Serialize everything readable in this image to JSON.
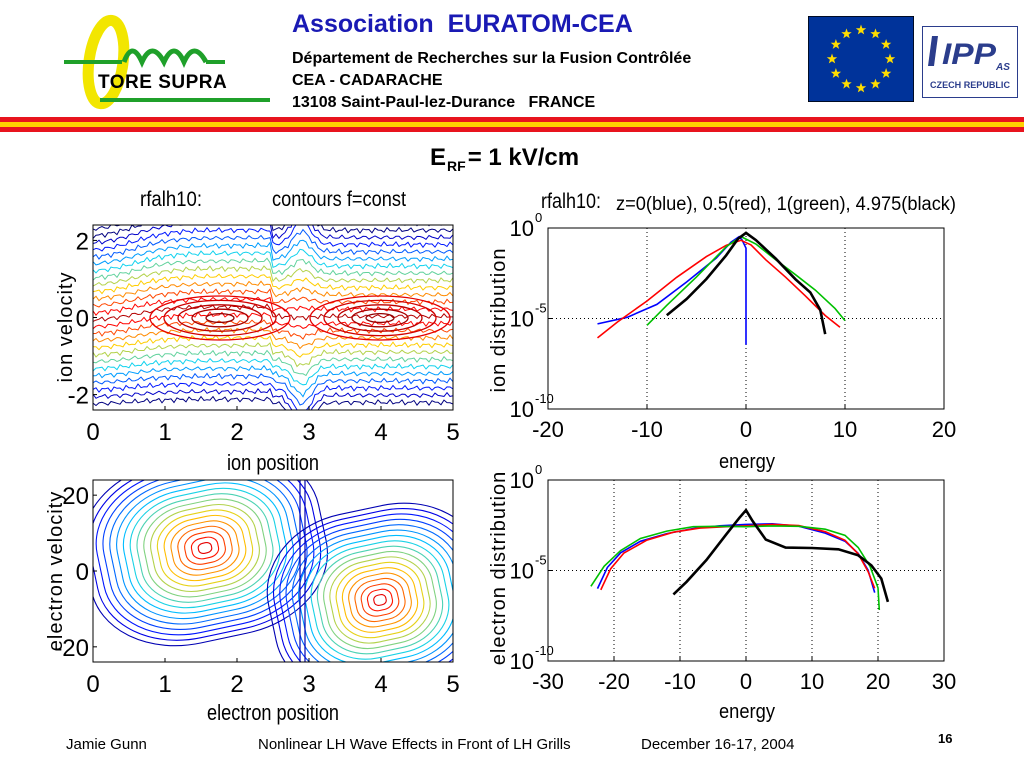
{
  "header": {
    "logo_text": "TORE SUPRA",
    "title": "Association  EURATOM-CEA",
    "line1": "Département de Recherches sur la Fusion Contrôlée",
    "line2": "CEA - CADARACHE",
    "line3": "13108 Saint-Paul-lez-Durance   FRANCE",
    "ipp_logo_text": "IPP",
    "ipp_logo_as": "AS",
    "ipp_logo_country": "CZECH REPUBLIC"
  },
  "slide": {
    "title_main": "E",
    "title_sub": "RF",
    "title_rest": "= 1 kV/cm"
  },
  "colors": {
    "header_blue": "#1a1ab4",
    "stripe_red": "#e8141e",
    "stripe_yellow": "#ffd200",
    "eu_blue": "#00339a",
    "eu_star": "#ffdd00",
    "logo_green": "#1fa02a",
    "logo_yellow": "#f2e600"
  },
  "chart_data": [
    {
      "type": "contour",
      "title": "rfalh10:",
      "subtitle": "contours f=const",
      "xlabel": "ion position",
      "ylabel": "ion velocity",
      "xlim": [
        0,
        5
      ],
      "ylim": [
        -2.4,
        2.4
      ],
      "xticks": [
        "0",
        "1",
        "2",
        "3",
        "4",
        "5"
      ],
      "yticks": [
        "2",
        "0",
        "-2"
      ],
      "ytick_values": [
        2,
        0,
        -2
      ],
      "colormap": "jet"
    },
    {
      "type": "contour",
      "xlabel": "electron position",
      "ylabel": "electron velocity",
      "xlim": [
        0,
        5
      ],
      "ylim": [
        -24,
        24
      ],
      "xticks": [
        "0",
        "1",
        "2",
        "3",
        "4",
        "5"
      ],
      "yticks": [
        "20",
        "0",
        "-20"
      ],
      "ytick_values": [
        20,
        0,
        -20
      ],
      "colormap": "jet"
    },
    {
      "type": "line",
      "title": "rfalh10:",
      "subtitle": "z=0(blue), 0.5(red), 1(green), 4.975(black)",
      "xlabel": "energy",
      "ylabel": "ion distribution",
      "xlim": [
        -20,
        20
      ],
      "log_ylim": [
        -10,
        0
      ],
      "xticks": [
        "-20",
        "-10",
        "0",
        "10",
        "20"
      ],
      "yticks": [
        {
          "base": "10",
          "exp": "0"
        },
        {
          "base": "10",
          "exp": "-5"
        },
        {
          "base": "10",
          "exp": "-10"
        }
      ],
      "grid": true,
      "series": [
        {
          "color": "#0000ff",
          "points": [
            [
              -15,
              -5.3
            ],
            [
              -12,
              -5.0
            ],
            [
              -9,
              -4.3
            ],
            [
              -6,
              -3.0
            ],
            [
              -3,
              -1.6
            ],
            [
              -1.5,
              -0.7
            ],
            [
              -0.7,
              -0.45
            ],
            [
              -0.4,
              -0.7
            ],
            [
              0,
              -1.2
            ],
            [
              0,
              -6.5
            ]
          ]
        },
        {
          "color": "#ff0000",
          "points": [
            [
              -15,
              -6.0
            ],
            [
              -13,
              -5.2
            ],
            [
              -10,
              -4.1
            ],
            [
              -7,
              -2.8
            ],
            [
              -4,
              -1.6
            ],
            [
              -2,
              -0.9
            ],
            [
              -0.5,
              -0.6
            ],
            [
              0.5,
              -0.9
            ],
            [
              2,
              -1.8
            ],
            [
              4,
              -2.8
            ],
            [
              6,
              -3.8
            ],
            [
              8,
              -4.8
            ],
            [
              9.5,
              -5.4
            ]
          ]
        },
        {
          "color": "#00c000",
          "points": [
            [
              -10,
              -5.3
            ],
            [
              -8,
              -4.2
            ],
            [
              -5,
              -2.7
            ],
            [
              -2,
              -1.1
            ],
            [
              -0.5,
              -0.55
            ],
            [
              1,
              -0.9
            ],
            [
              3,
              -1.7
            ],
            [
              5,
              -2.5
            ],
            [
              7,
              -3.4
            ],
            [
              9,
              -4.5
            ],
            [
              10,
              -5.2
            ]
          ]
        },
        {
          "color": "#000000",
          "points": [
            [
              -8,
              -4.8
            ],
            [
              -6,
              -3.8
            ],
            [
              -4,
              -2.7
            ],
            [
              -2,
              -1.5
            ],
            [
              -0.8,
              -0.7
            ],
            [
              0,
              -0.4
            ],
            [
              1,
              -0.7
            ],
            [
              3,
              -1.6
            ],
            [
              5,
              -2.7
            ],
            [
              6.5,
              -3.5
            ],
            [
              7.5,
              -4.6
            ],
            [
              8,
              -6.0
            ]
          ]
        }
      ]
    },
    {
      "type": "line",
      "xlabel": "energy",
      "ylabel": "electron distribution",
      "xlim": [
        -30,
        30
      ],
      "log_ylim": [
        -10,
        0
      ],
      "xticks": [
        "-30",
        "-20",
        "-10",
        "0",
        "10",
        "20",
        "30"
      ],
      "yticks": [
        {
          "base": "10",
          "exp": "0"
        },
        {
          "base": "10",
          "exp": "-5"
        },
        {
          "base": "10",
          "exp": "-10"
        }
      ],
      "grid": true,
      "series": [
        {
          "color": "#0000ff",
          "points": [
            [
              -22.5,
              -6.0
            ],
            [
              -21,
              -4.9
            ],
            [
              -19,
              -4.1
            ],
            [
              -16,
              -3.4
            ],
            [
              -12,
              -2.9
            ],
            [
              -8,
              -2.6
            ],
            [
              -4,
              -2.5
            ],
            [
              0,
              -2.5
            ],
            [
              4,
              -2.5
            ],
            [
              8,
              -2.6
            ],
            [
              12,
              -2.9
            ],
            [
              15,
              -3.3
            ],
            [
              17,
              -4.0
            ],
            [
              18.5,
              -5.0
            ],
            [
              19.5,
              -6.3
            ]
          ]
        },
        {
          "color": "#ff0000",
          "points": [
            [
              -22,
              -6.0
            ],
            [
              -20.5,
              -4.9
            ],
            [
              -18.5,
              -4.1
            ],
            [
              -15,
              -3.4
            ],
            [
              -11,
              -2.9
            ],
            [
              -7,
              -2.6
            ],
            [
              -3,
              -2.5
            ],
            [
              0,
              -2.5
            ],
            [
              4,
              -2.5
            ],
            [
              8,
              -2.6
            ],
            [
              12,
              -2.9
            ],
            [
              15,
              -3.3
            ],
            [
              17,
              -4.0
            ],
            [
              18.5,
              -5.0
            ],
            [
              19.5,
              -6.0
            ]
          ]
        },
        {
          "color": "#00c000",
          "points": [
            [
              -23.5,
              -5.8
            ],
            [
              -21.5,
              -4.7
            ],
            [
              -19,
              -3.9
            ],
            [
              -16,
              -3.3
            ],
            [
              -12,
              -2.9
            ],
            [
              -8,
              -2.6
            ],
            [
              -4,
              -2.5
            ],
            [
              0,
              -2.5
            ],
            [
              4,
              -2.5
            ],
            [
              8,
              -2.6
            ],
            [
              12,
              -2.8
            ],
            [
              15,
              -3.1
            ],
            [
              17,
              -3.7
            ],
            [
              18.8,
              -4.7
            ],
            [
              20,
              -5.9
            ],
            [
              20.2,
              -7.2
            ]
          ]
        },
        {
          "color": "#000000",
          "points": [
            [
              -11,
              -6.3
            ],
            [
              -9,
              -5.5
            ],
            [
              -6,
              -4.3
            ],
            [
              -3,
              -3.0
            ],
            [
              -1,
              -2.2
            ],
            [
              0,
              -1.8
            ],
            [
              1,
              -2.3
            ],
            [
              3,
              -3.2
            ],
            [
              6,
              -3.6
            ],
            [
              10,
              -3.7
            ],
            [
              14,
              -3.9
            ],
            [
              17,
              -4.3
            ],
            [
              19,
              -4.8
            ],
            [
              20.5,
              -5.4
            ],
            [
              21.5,
              -6.6
            ]
          ]
        }
      ]
    }
  ],
  "footer": {
    "author": "Jamie Gunn",
    "talk_title": "Nonlinear LH Wave Effects in Front of LH Grills",
    "date": "December 16-17, 2004",
    "page_number": "16"
  }
}
